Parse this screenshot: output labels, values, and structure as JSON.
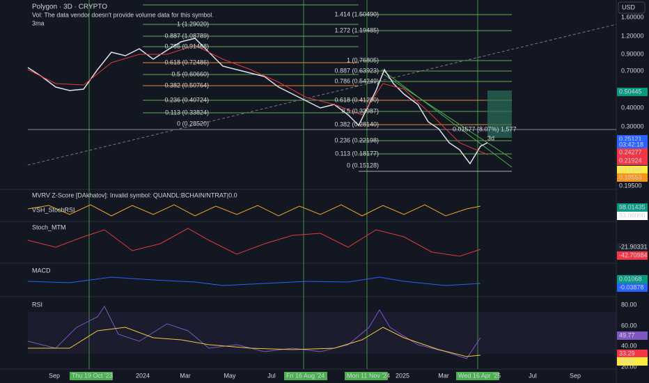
{
  "header": {
    "symbol": "Polygon · 3D · CRYPTO",
    "vol_note": "Vol: The data vendor doesn't provide volume data for this symbol.",
    "indicator": "3ma",
    "currency": "USD"
  },
  "fib_left": [
    "1 (1.29020)",
    "0.887 (1.08789)",
    "0.786 (0.91468)",
    "0.618 (0.72486)",
    "0.5 (0.60660)",
    "0.382 (0.50764)",
    "0.236 (0.40724)",
    "0.113 (0.33824)",
    "0 (0.28520)"
  ],
  "fib_right": [
    "1.414 (1.50490)",
    "1.272 (1.19485)",
    "1 (0.76805)",
    "0.887 (0.63923)",
    "0.786 (0.54249)",
    "0.618 (0.41290)",
    "0.5 (0.33987)",
    "0.382 (0.28140)",
    "0.236 (0.22198)",
    "0.113 (0.18177)",
    "0 (0.15128)"
  ],
  "annotations": {
    "measure": "0.01577 (8.07%) 1,577",
    "interval": "3d"
  },
  "price_axis": [
    "1.60000",
    "1.20000",
    "0.90000",
    "0.70000",
    "0.40000",
    "0.30000"
  ],
  "price_tags": [
    "0.50445",
    "0.25121",
    "03:42:18",
    "0.24277",
    "0.21924",
    "0.21246",
    "0.19553",
    "0.19500"
  ],
  "panels": {
    "mvrv": "MVRV Z-Score [DAkhatov]: Invalid symbol: QUANDL:BCHAIN/NTRAT|0.0",
    "stochrsi": "VSH_StochRSI",
    "stochrsi_tags": [
      "98.01435",
      "93.00000"
    ],
    "stoch_mtm": "Stoch_MTM",
    "stoch_mtm_tags": [
      "-21.90331",
      "-42.70984"
    ],
    "macd": "MACD",
    "macd_tags": [
      "0.01068",
      "-0.03878"
    ],
    "rsi": "RSI",
    "rsi_axis": [
      "80.00",
      "60.00",
      "40.00",
      "20.00"
    ],
    "rsi_tags": [
      "49.77",
      "33.29",
      "32.81"
    ]
  },
  "time_axis": [
    "Sep",
    "2024",
    "Mar",
    "May",
    "Jul",
    "2025",
    "Mar",
    "Jul",
    "Sep"
  ],
  "time_tags": [
    "Thu 19 Oct '23",
    "Fri 16 Aug '24",
    "Mon 11 Nov '24",
    "Wed 16 Apr '25"
  ]
}
